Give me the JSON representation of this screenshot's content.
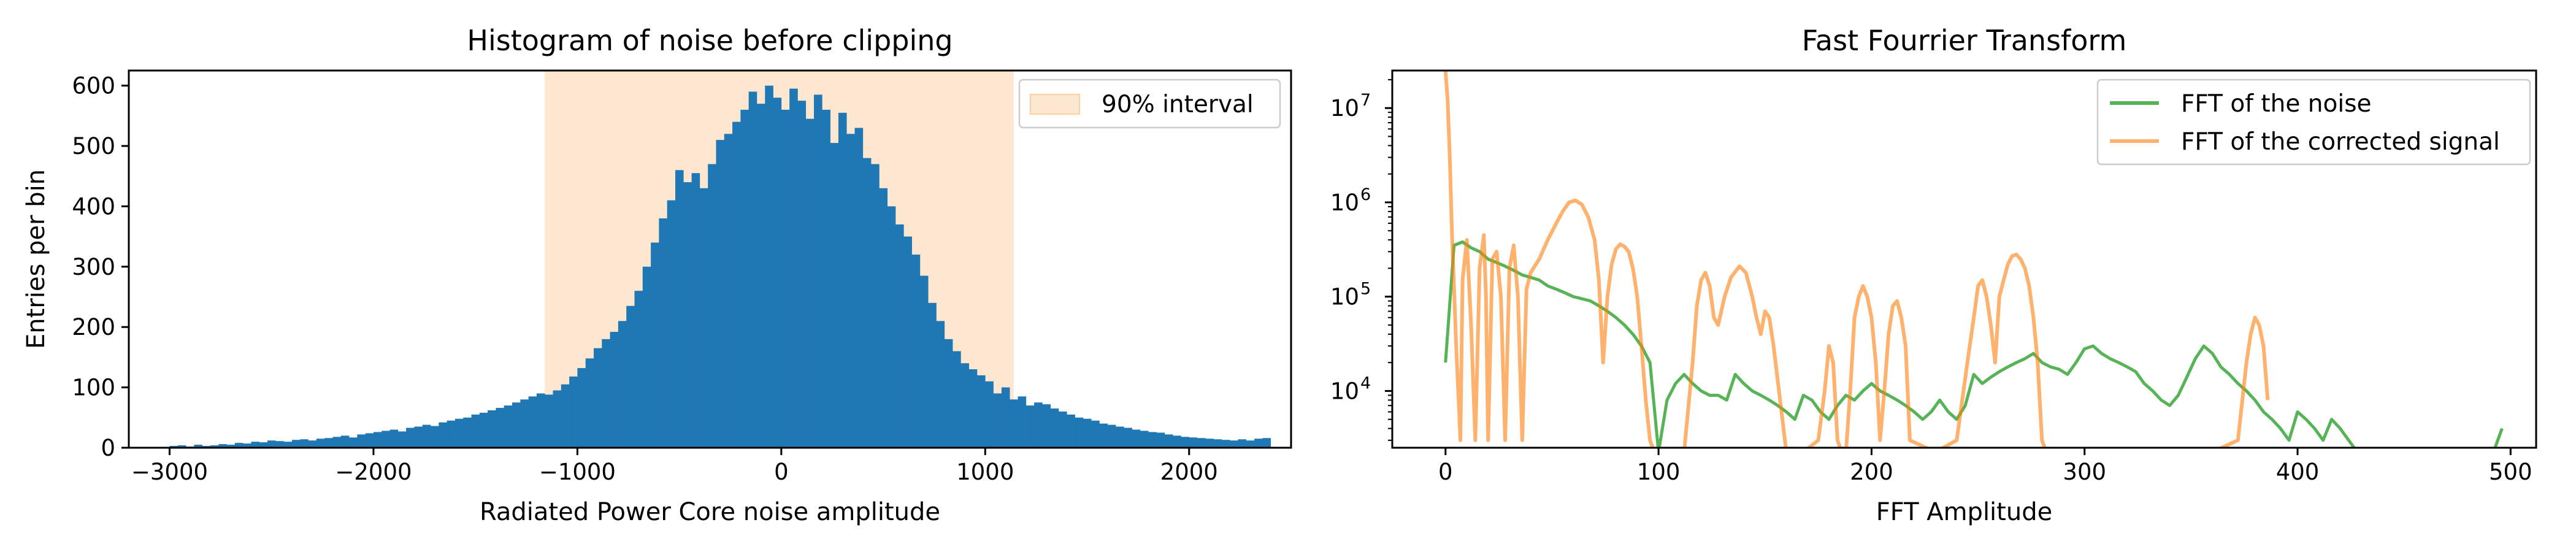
{
  "chart_data": [
    {
      "type": "bar",
      "title": "Histogram of noise before clipping",
      "xlabel": "Radiated Power Core noise amplitude",
      "ylabel": "Entries per bin",
      "xlim": [
        -3200,
        2500
      ],
      "ylim": [
        0,
        625
      ],
      "xticks": [
        -3000,
        -2000,
        -1000,
        0,
        1000,
        2000
      ],
      "xtick_labels": [
        "−3000",
        "−2000",
        "−1000",
        "0",
        "1000",
        "2000"
      ],
      "yticks": [
        0,
        100,
        200,
        300,
        400,
        500,
        600
      ],
      "ytick_labels": [
        "0",
        "100",
        "200",
        "300",
        "400",
        "500",
        "600"
      ],
      "grid": false,
      "bar_color": "#1f77b4",
      "interval": {
        "label": "90% interval",
        "x0": -1160,
        "x1": 1140,
        "color": "#fdd0a2",
        "opacity": 0.5
      },
      "legend_position": "top-right",
      "bin_width": 40,
      "x": [
        -3000,
        -2960,
        -2920,
        -2880,
        -2840,
        -2800,
        -2760,
        -2720,
        -2680,
        -2640,
        -2600,
        -2560,
        -2520,
        -2480,
        -2440,
        -2400,
        -2360,
        -2320,
        -2280,
        -2240,
        -2200,
        -2160,
        -2120,
        -2080,
        -2040,
        -2000,
        -1960,
        -1920,
        -1880,
        -1840,
        -1800,
        -1760,
        -1720,
        -1680,
        -1640,
        -1600,
        -1560,
        -1520,
        -1480,
        -1440,
        -1400,
        -1360,
        -1320,
        -1280,
        -1240,
        -1200,
        -1160,
        -1120,
        -1080,
        -1040,
        -1000,
        -960,
        -920,
        -880,
        -840,
        -800,
        -760,
        -720,
        -680,
        -640,
        -600,
        -560,
        -520,
        -480,
        -440,
        -400,
        -360,
        -320,
        -280,
        -240,
        -200,
        -160,
        -120,
        -80,
        -40,
        0,
        40,
        80,
        120,
        160,
        200,
        240,
        280,
        320,
        360,
        400,
        440,
        480,
        520,
        560,
        600,
        640,
        680,
        720,
        760,
        800,
        840,
        880,
        920,
        960,
        1000,
        1040,
        1080,
        1120,
        1160,
        1200,
        1240,
        1280,
        1320,
        1360,
        1400,
        1440,
        1480,
        1520,
        1560,
        1600,
        1640,
        1680,
        1720,
        1760,
        1800,
        1840,
        1880,
        1920,
        1960,
        2000,
        2040,
        2080,
        2120,
        2160,
        2200,
        2240,
        2280,
        2320,
        2360
      ],
      "values": [
        3,
        4,
        2,
        5,
        3,
        4,
        6,
        5,
        8,
        7,
        10,
        9,
        12,
        11,
        10,
        13,
        14,
        12,
        15,
        16,
        18,
        20,
        17,
        22,
        24,
        26,
        28,
        30,
        27,
        33,
        35,
        38,
        36,
        42,
        45,
        48,
        50,
        55,
        58,
        62,
        66,
        70,
        75,
        80,
        85,
        90,
        88,
        95,
        105,
        118,
        132,
        148,
        165,
        180,
        192,
        210,
        235,
        260,
        300,
        340,
        380,
        410,
        460,
        440,
        455,
        430,
        470,
        510,
        520,
        540,
        560,
        590,
        570,
        600,
        580,
        560,
        595,
        575,
        545,
        585,
        560,
        505,
        555,
        520,
        530,
        480,
        470,
        430,
        400,
        370,
        350,
        320,
        285,
        240,
        210,
        180,
        160,
        140,
        130,
        120,
        110,
        90,
        100,
        80,
        85,
        70,
        75,
        72,
        65,
        60,
        55,
        50,
        48,
        45,
        40,
        38,
        35,
        33,
        30,
        28,
        26,
        25,
        22,
        20,
        18,
        17,
        16,
        15,
        14,
        13,
        12,
        14,
        12,
        15,
        16
      ]
    },
    {
      "type": "line",
      "title": "Fast Fourrier Transform",
      "xlabel": "FFT Amplitude",
      "ylabel": "",
      "xlim": [
        -25,
        512
      ],
      "ylim": [
        2500,
        25000000
      ],
      "yscale": "log",
      "xticks": [
        0,
        100,
        200,
        300,
        400,
        500
      ],
      "xtick_labels": [
        "0",
        "100",
        "200",
        "300",
        "400",
        "500"
      ],
      "yticks": [
        10000,
        100000,
        1000000,
        10000000
      ],
      "ytick_labels": [
        [
          "10",
          "4"
        ],
        [
          "10",
          "5"
        ],
        [
          "10",
          "6"
        ],
        [
          "10",
          "7"
        ]
      ],
      "grid": false,
      "legend_position": "top-right",
      "series": [
        {
          "name": "FFT of the noise",
          "color": "#2ca02c",
          "opacity": 0.8,
          "x": [
            0,
            4,
            8,
            12,
            16,
            20,
            24,
            28,
            32,
            36,
            40,
            44,
            48,
            52,
            56,
            60,
            64,
            68,
            72,
            76,
            80,
            84,
            88,
            92,
            96,
            100,
            104,
            108,
            112,
            116,
            120,
            124,
            128,
            132,
            136,
            140,
            144,
            148,
            152,
            156,
            160,
            164,
            168,
            172,
            176,
            180,
            184,
            188,
            192,
            196,
            200,
            204,
            208,
            212,
            216,
            220,
            224,
            228,
            232,
            236,
            240,
            244,
            248,
            252,
            256,
            260,
            264,
            268,
            272,
            276,
            280,
            284,
            288,
            292,
            296,
            300,
            304,
            308,
            312,
            316,
            320,
            324,
            328,
            332,
            336,
            340,
            344,
            348,
            352,
            356,
            360,
            364,
            368,
            372,
            376,
            380,
            384,
            388,
            392,
            396,
            400,
            404,
            408,
            412,
            416,
            420,
            424,
            428,
            432,
            436,
            440,
            444,
            448,
            452,
            456,
            460,
            464,
            468,
            472,
            476,
            480,
            484,
            488,
            492,
            496
          ],
          "values": [
            20000,
            350000,
            380000,
            330000,
            300000,
            250000,
            230000,
            210000,
            190000,
            170000,
            160000,
            150000,
            130000,
            120000,
            110000,
            100000,
            95000,
            90000,
            80000,
            70000,
            60000,
            50000,
            40000,
            30000,
            20000,
            0,
            8000,
            12000,
            15000,
            12000,
            10000,
            9000,
            9000,
            8000,
            15000,
            12000,
            10000,
            9000,
            8000,
            7000,
            6000,
            5000,
            9000,
            8000,
            6000,
            5000,
            7000,
            9000,
            8000,
            10000,
            12000,
            10000,
            9000,
            8000,
            7000,
            6000,
            5000,
            6000,
            8000,
            6000,
            5000,
            7000,
            15000,
            12000,
            14000,
            16000,
            18000,
            20000,
            22000,
            25000,
            20000,
            18000,
            17000,
            15000,
            20000,
            28000,
            30000,
            25000,
            22000,
            20000,
            18000,
            16000,
            12000,
            10000,
            8000,
            7000,
            9000,
            14000,
            22000,
            30000,
            25000,
            18000,
            15000,
            12000,
            10000,
            8000,
            6000,
            5000,
            4000,
            3000,
            6000,
            5000,
            4000,
            3000,
            5000,
            4000,
            3000,
            0,
            0,
            0,
            0,
            0,
            0,
            0,
            0,
            0,
            0,
            0,
            0,
            0,
            0,
            0,
            0,
            0,
            4000
          ]
        },
        {
          "name": "FFT of the corrected signal",
          "color": "#ff7f0e",
          "opacity": 0.6,
          "x": [
            0,
            1,
            2,
            3,
            5,
            7,
            8,
            10,
            12,
            14,
            16,
            18,
            19,
            20,
            22,
            24,
            26,
            28,
            30,
            32,
            34,
            36,
            38,
            40,
            44,
            48,
            52,
            55,
            58,
            61,
            64,
            67,
            70,
            72,
            74,
            76,
            78,
            80,
            82,
            84,
            86,
            88,
            90,
            92,
            94,
            96,
            98,
            100,
            104,
            108,
            112,
            116,
            118,
            120,
            122,
            124,
            126,
            128,
            131,
            134,
            138,
            141,
            144,
            146,
            148,
            150,
            152,
            154,
            160,
            168,
            175,
            178,
            180,
            182,
            184,
            186,
            188,
            190,
            192,
            194,
            196,
            198,
            200,
            202,
            204,
            206,
            208,
            210,
            212,
            214,
            216,
            218,
            230,
            240,
            245,
            248,
            250,
            252,
            254,
            256,
            258,
            260,
            262,
            264,
            266,
            268,
            270,
            272,
            274,
            276,
            278,
            280,
            282,
            284,
            286,
            300,
            320,
            340,
            360,
            372,
            376,
            378,
            380,
            382,
            384,
            386
          ],
          "values": [
            25000000,
            12000000,
            3000000,
            500000,
            30000,
            3000,
            150000,
            400000,
            50000,
            3000,
            200000,
            450000,
            100000,
            3000,
            250000,
            300000,
            100000,
            3000,
            200000,
            350000,
            100000,
            3000,
            120000,
            180000,
            250000,
            400000,
            600000,
            800000,
            1000000,
            1050000,
            950000,
            700000,
            400000,
            150000,
            20000,
            100000,
            220000,
            320000,
            360000,
            340000,
            300000,
            200000,
            100000,
            30000,
            8000,
            3000,
            0,
            0,
            0,
            0,
            0,
            20000,
            80000,
            150000,
            180000,
            130000,
            60000,
            50000,
            100000,
            160000,
            210000,
            180000,
            100000,
            60000,
            40000,
            70000,
            60000,
            30000,
            0,
            0,
            3000,
            10000,
            30000,
            20000,
            3000,
            0,
            0,
            10000,
            60000,
            100000,
            130000,
            100000,
            60000,
            20000,
            3000,
            10000,
            40000,
            80000,
            90000,
            60000,
            30000,
            3000,
            0,
            3000,
            20000,
            60000,
            130000,
            150000,
            100000,
            50000,
            20000,
            100000,
            150000,
            220000,
            270000,
            280000,
            250000,
            200000,
            130000,
            60000,
            20000,
            3000,
            0,
            0,
            0,
            0,
            0,
            0,
            0,
            3000,
            20000,
            40000,
            60000,
            50000,
            30000,
            8000
          ]
        }
      ]
    }
  ]
}
